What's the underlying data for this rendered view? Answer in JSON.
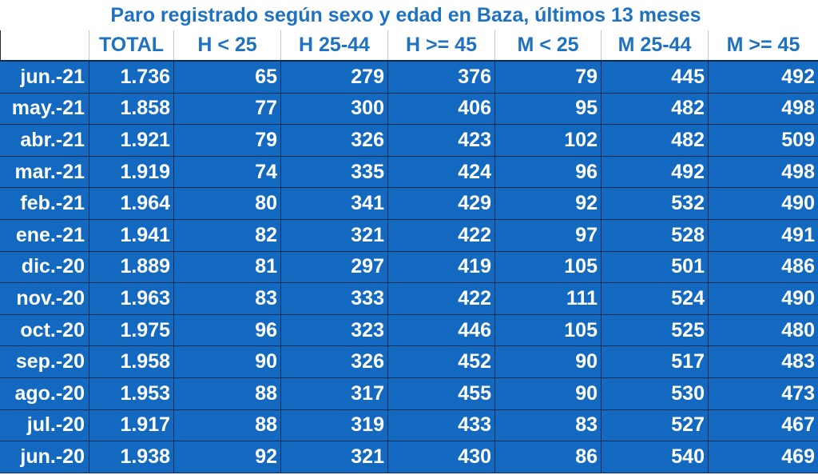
{
  "title": "Paro registrado según sexo y edad en Baza, últimos 13 meses",
  "colors": {
    "title_text": "#1e72c0",
    "cell_background": "#1369c0",
    "cell_text": "#ffffff",
    "grid_lines": "#0b2d55"
  },
  "table": {
    "headers": [
      "",
      "TOTAL",
      "H < 25",
      "H 25-44",
      "H >= 45",
      "M < 25",
      "M 25-44",
      "M >= 45"
    ],
    "rows": [
      [
        "jun.-21",
        "1.736",
        "65",
        "279",
        "376",
        "79",
        "445",
        "492"
      ],
      [
        "may.-21",
        "1.858",
        "77",
        "300",
        "406",
        "95",
        "482",
        "498"
      ],
      [
        "abr.-21",
        "1.921",
        "79",
        "326",
        "423",
        "102",
        "482",
        "509"
      ],
      [
        "mar.-21",
        "1.919",
        "74",
        "335",
        "424",
        "96",
        "492",
        "498"
      ],
      [
        "feb.-21",
        "1.964",
        "80",
        "341",
        "429",
        "92",
        "532",
        "490"
      ],
      [
        "ene.-21",
        "1.941",
        "82",
        "321",
        "422",
        "97",
        "528",
        "491"
      ],
      [
        "dic.-20",
        "1.889",
        "81",
        "297",
        "419",
        "105",
        "501",
        "486"
      ],
      [
        "nov.-20",
        "1.963",
        "83",
        "333",
        "422",
        "111",
        "524",
        "490"
      ],
      [
        "oct.-20",
        "1.975",
        "96",
        "323",
        "446",
        "105",
        "525",
        "480"
      ],
      [
        "sep.-20",
        "1.958",
        "90",
        "326",
        "452",
        "90",
        "517",
        "483"
      ],
      [
        "ago.-20",
        "1.953",
        "88",
        "317",
        "455",
        "90",
        "530",
        "473"
      ],
      [
        "jul.-20",
        "1.917",
        "88",
        "319",
        "433",
        "83",
        "527",
        "467"
      ],
      [
        "jun.-20",
        "1.938",
        "92",
        "321",
        "430",
        "86",
        "540",
        "469"
      ]
    ]
  }
}
